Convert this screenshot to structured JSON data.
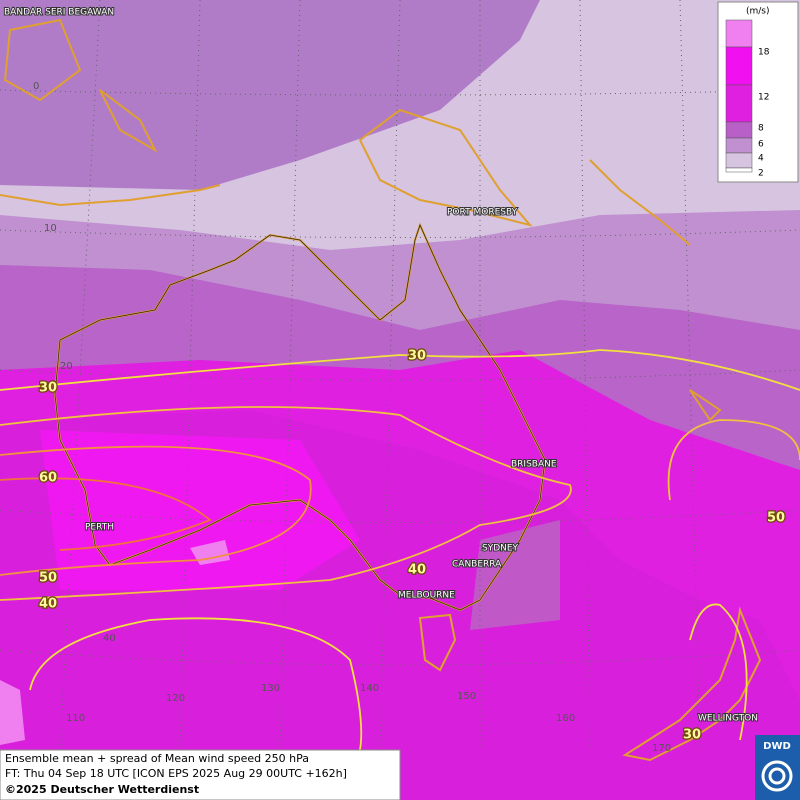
{
  "map": {
    "cities": [
      "BANDAR SERI BEGAWAN",
      "PORT MORESBY",
      "BRISBANE",
      "SYDNEY",
      "CANBERRA",
      "MELBOURNE",
      "PERTH",
      "WELLINGTON"
    ],
    "lat_labels": [
      0,
      10,
      20,
      40
    ],
    "lon_labels": [
      110,
      120,
      130,
      140,
      150,
      160,
      170
    ],
    "contour_labels": [
      30,
      30,
      30,
      60,
      50,
      50,
      40,
      40
    ]
  },
  "legend": {
    "unit": "(m/s)",
    "levels": [
      18,
      12,
      8,
      6,
      4,
      2
    ]
  },
  "footer": {
    "line1": "Ensemble mean + spread of Mean wind speed 250 hPa",
    "line2": "FT: Thu 04 Sep 18 UTC [ICON EPS 2025 Aug 29 00UTC +162h]",
    "line3": "©2025 Deutscher Wetterdienst"
  },
  "logo": "DWD"
}
